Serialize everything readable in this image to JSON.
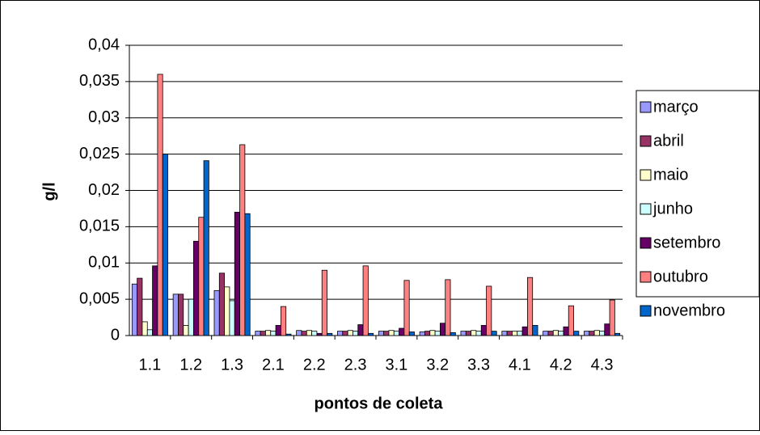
{
  "chart_data": {
    "type": "bar",
    "y_label": "g/l",
    "x_label": "pontos de coleta",
    "categories": [
      "1.1",
      "1.2",
      "1.3",
      "2.1",
      "2.2",
      "2.3",
      "3.1",
      "3.2",
      "3.3",
      "4.1",
      "4.2",
      "4.3"
    ],
    "series": [
      {
        "name": "março",
        "color": "#9999ff",
        "values": [
          0.0071,
          0.0057,
          0.0062,
          0.0006,
          0.0007,
          0.0006,
          0.0006,
          0.0005,
          0.0006,
          0.0006,
          0.0006,
          0.0006
        ]
      },
      {
        "name": "abril",
        "color": "#993366",
        "values": [
          0.0079,
          0.0057,
          0.0086,
          0.0006,
          0.0006,
          0.0006,
          0.0006,
          0.0006,
          0.0006,
          0.0006,
          0.0006,
          0.0006
        ]
      },
      {
        "name": "maio",
        "color": "#ffffcc",
        "values": [
          0.0019,
          0.0014,
          0.0067,
          0.0007,
          0.0007,
          0.0007,
          0.0007,
          0.0007,
          0.0007,
          0.0006,
          0.0007,
          0.0007
        ]
      },
      {
        "name": "junho",
        "color": "#ccffff",
        "values": [
          0.0008,
          0.005,
          0.0048,
          0.0006,
          0.0006,
          0.0006,
          0.0006,
          0.0006,
          0.0006,
          0.0006,
          0.0006,
          0.0006
        ]
      },
      {
        "name": "setembro",
        "color": "#660066",
        "values": [
          0.0096,
          0.013,
          0.017,
          0.0014,
          0.0003,
          0.0015,
          0.001,
          0.0017,
          0.0014,
          0.0012,
          0.0012,
          0.0016
        ]
      },
      {
        "name": "outubro",
        "color": "#ff8080",
        "values": [
          0.036,
          0.0163,
          0.0263,
          0.004,
          0.009,
          0.0096,
          0.0076,
          0.0077,
          0.0068,
          0.008,
          0.0041,
          0.0049
        ]
      },
      {
        "name": "novembro",
        "color": "#0066cc",
        "values": [
          0.025,
          0.0241,
          0.0168,
          0.0002,
          0.0003,
          0.0003,
          0.0005,
          0.0004,
          0.0006,
          0.0014,
          0.0006,
          0.0003
        ]
      }
    ],
    "ylim": [
      0,
      0.04
    ],
    "yticks": [
      0,
      {
        "value": 0.005,
        "label": "0,005"
      },
      {
        "value": 0.01,
        "label": "0,01"
      },
      {
        "value": 0.015,
        "label": "0,015"
      },
      {
        "value": 0.02,
        "label": "0,02"
      },
      {
        "value": 0.025,
        "label": "0,025"
      },
      {
        "value": 0.03,
        "label": "0,03"
      },
      {
        "value": 0.035,
        "label": "0,035"
      },
      {
        "value": 0.04,
        "label": "0,04"
      }
    ],
    "grid": true,
    "legend": "right"
  }
}
